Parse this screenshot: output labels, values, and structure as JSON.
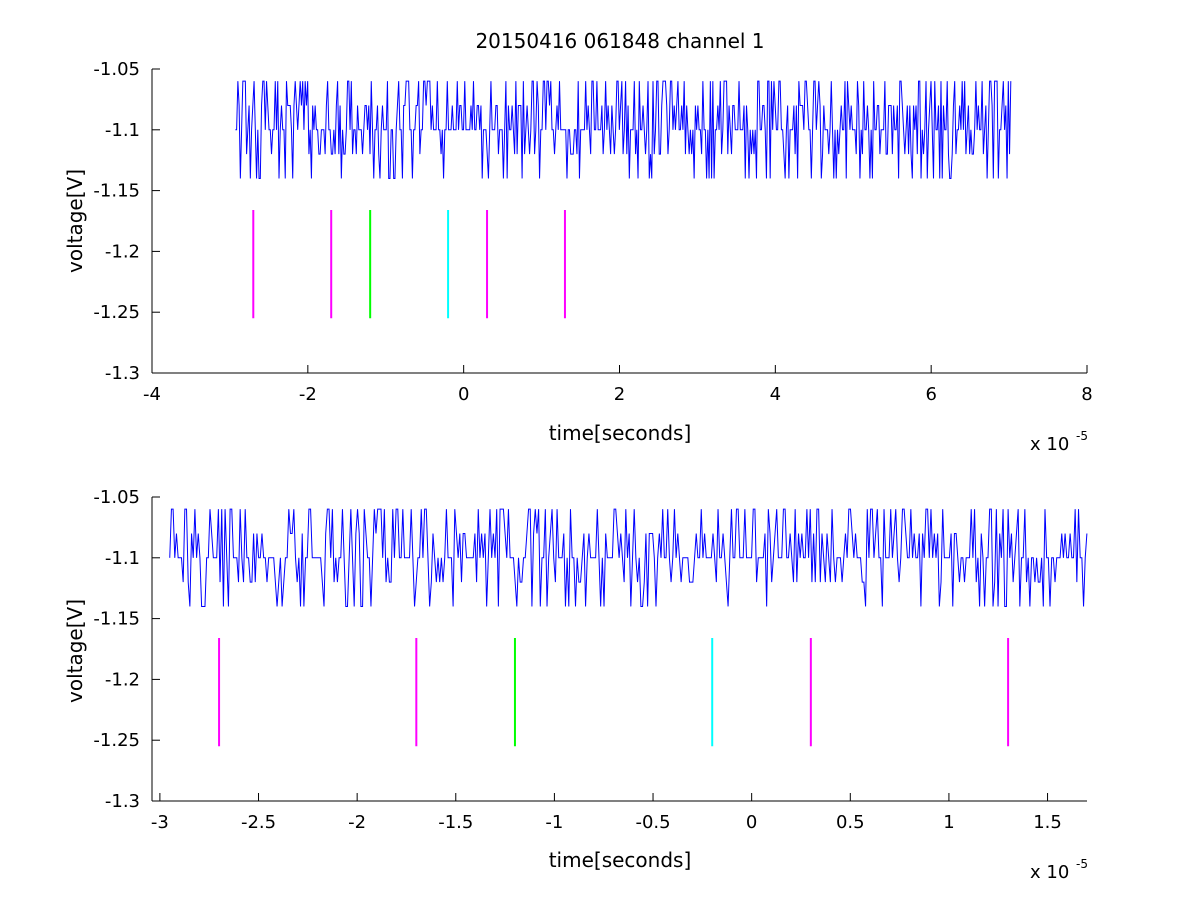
{
  "figure": {
    "title": "20150416 061848 channel 1"
  },
  "chart_data": [
    {
      "type": "line",
      "title": "20150416 061848 channel 1",
      "xlabel": "time[seconds]",
      "ylabel": "voltage[V]",
      "x_multiplier_label": "x 10",
      "x_multiplier_exponent": "-5",
      "xlim": [
        -4,
        8
      ],
      "ylim": [
        -1.3,
        -1.05
      ],
      "x_ticks": [
        -4,
        -2,
        0,
        2,
        4,
        6,
        8
      ],
      "x_tick_labels": [
        "-4",
        "-2",
        "0",
        "2",
        "4",
        "6",
        "8"
      ],
      "y_ticks": [
        -1.05,
        -1.1,
        -1.15,
        -1.2,
        -1.25,
        -1.3
      ],
      "y_tick_labels": [
        "-1.05",
        "-1.1",
        "-1.15",
        "-1.2",
        "-1.25",
        "-1.3"
      ],
      "grid": false,
      "series": [
        {
          "style": "line",
          "color": "#0000ff",
          "x_range": [
            -2.93,
            7.03
          ],
          "levels": [
            -1.06,
            -1.08,
            -1.1,
            -1.12,
            -1.14
          ],
          "baseline": -1.1,
          "signal": "dense noise mostly between -1.06 and -1.1, frequent excursions down to -1.14"
        }
      ],
      "markers": [
        {
          "x": -2.7,
          "y_from": -1.166,
          "y_to": -1.255,
          "color": "#ff00ff"
        },
        {
          "x": -1.7,
          "y_from": -1.166,
          "y_to": -1.255,
          "color": "#ff00ff"
        },
        {
          "x": -1.2,
          "y_from": -1.166,
          "y_to": -1.255,
          "color": "#00ff00"
        },
        {
          "x": -0.2,
          "y_from": -1.166,
          "y_to": -1.255,
          "color": "#00ffff"
        },
        {
          "x": 0.3,
          "y_from": -1.166,
          "y_to": -1.255,
          "color": "#ff00ff"
        },
        {
          "x": 1.3,
          "y_from": -1.166,
          "y_to": -1.255,
          "color": "#ff00ff"
        }
      ]
    },
    {
      "type": "line",
      "title": "",
      "xlabel": "time[seconds]",
      "ylabel": "voltage[V]",
      "x_multiplier_label": "x 10",
      "x_multiplier_exponent": "-5",
      "xlim": [
        -3.04,
        1.7
      ],
      "ylim": [
        -1.3,
        -1.05
      ],
      "x_ticks": [
        -3,
        -2.5,
        -2,
        -1.5,
        -1,
        -0.5,
        0,
        0.5,
        1,
        1.5
      ],
      "x_tick_labels": [
        "-3",
        "-2.5",
        "-2",
        "-1.5",
        "-1",
        "-0.5",
        "0",
        "0.5",
        "1",
        "1.5"
      ],
      "y_ticks": [
        -1.05,
        -1.1,
        -1.15,
        -1.2,
        -1.25,
        -1.3
      ],
      "y_tick_labels": [
        "-1.05",
        "-1.1",
        "-1.15",
        "-1.2",
        "-1.25",
        "-1.3"
      ],
      "grid": false,
      "series": [
        {
          "style": "line",
          "color": "#0000ff",
          "x_range": [
            -2.95,
            1.7
          ],
          "levels": [
            -1.06,
            -1.08,
            -1.1,
            -1.12,
            -1.14
          ],
          "baseline": -1.1,
          "signal": "zoomed view of the same noise, toggling between -1.06 and -1.1 with dips to -1.14"
        }
      ],
      "markers": [
        {
          "x": -2.7,
          "y_from": -1.166,
          "y_to": -1.255,
          "color": "#ff00ff"
        },
        {
          "x": -1.7,
          "y_from": -1.166,
          "y_to": -1.255,
          "color": "#ff00ff"
        },
        {
          "x": -1.2,
          "y_from": -1.166,
          "y_to": -1.255,
          "color": "#00ff00"
        },
        {
          "x": -0.2,
          "y_from": -1.166,
          "y_to": -1.255,
          "color": "#00ffff"
        },
        {
          "x": 0.3,
          "y_from": -1.166,
          "y_to": -1.255,
          "color": "#ff00ff"
        },
        {
          "x": 1.3,
          "y_from": -1.166,
          "y_to": -1.255,
          "color": "#ff00ff"
        }
      ]
    }
  ]
}
